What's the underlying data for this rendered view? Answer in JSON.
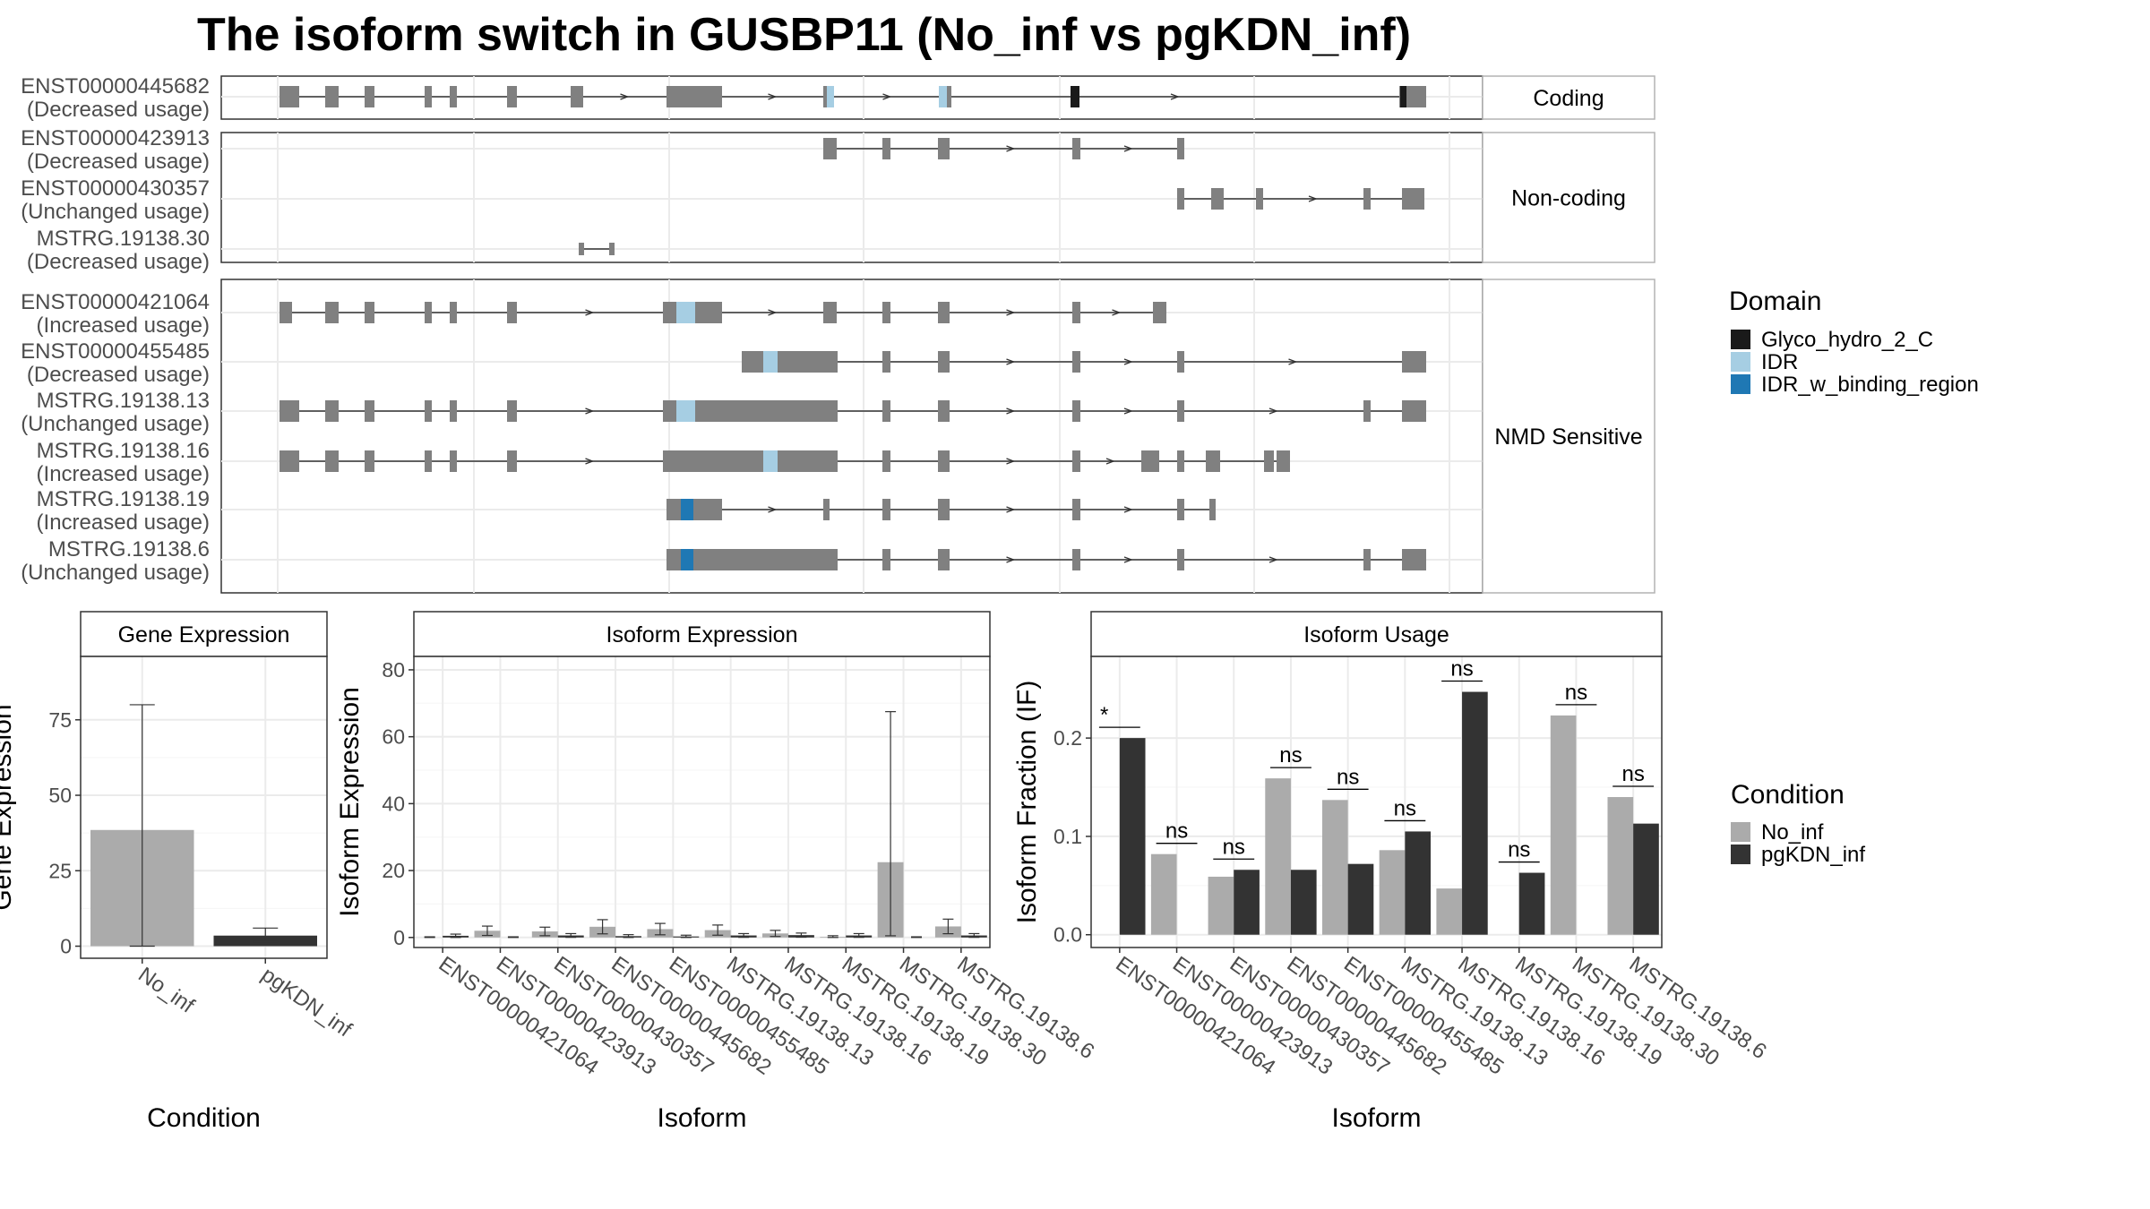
{
  "title": "The isoform switch in GUSBP11 (No_inf vs pgKDN_inf)",
  "colors": {
    "exon": "#808080",
    "No_inf": "#ababab",
    "pgKDN_inf": "#333333",
    "Glyco_hydro_2_C": "#1a1a1a",
    "IDR": "#a6cee3",
    "IDR_w_binding_region": "#1f78b4"
  },
  "structure": {
    "panels": [
      {
        "label": "Coding",
        "isoforms": [
          {
            "name": "ENST00000445682",
            "usage": "(Decreased usage)"
          }
        ]
      },
      {
        "label": "Non-coding",
        "isoforms": [
          {
            "name": "ENST00000423913",
            "usage": "(Decreased usage)"
          },
          {
            "name": "ENST00000430357",
            "usage": "(Unchanged usage)"
          },
          {
            "name": "MSTRG.19138.30",
            "usage": "(Decreased usage)"
          }
        ]
      },
      {
        "label": "NMD Sensitive",
        "isoforms": [
          {
            "name": "ENST00000421064",
            "usage": "(Increased usage)"
          },
          {
            "name": "ENST00000455485",
            "usage": "(Decreased usage)"
          },
          {
            "name": "MSTRG.19138.13",
            "usage": "(Unchanged usage)"
          },
          {
            "name": "MSTRG.19138.16",
            "usage": "(Increased usage)"
          },
          {
            "name": "MSTRG.19138.19",
            "usage": "(Increased usage)"
          },
          {
            "name": "MSTRG.19138.6",
            "usage": "(Unchanged usage)"
          }
        ]
      }
    ],
    "domain_legend": {
      "title": "Domain",
      "items": [
        "Glyco_hydro_2_C",
        "IDR",
        "IDR_w_binding_region"
      ]
    }
  },
  "chart_data": [
    {
      "type": "bar",
      "title": "Gene Expression",
      "xlabel": "Condition",
      "ylabel": "Gene Expression",
      "categories": [
        "No_inf",
        "pgKDN_inf"
      ],
      "values": [
        38.5,
        3.5
      ],
      "error": [
        [
          0,
          80
        ],
        [
          1.5,
          6
        ]
      ],
      "ylim": [
        -4,
        96
      ],
      "yticks": [
        0,
        25,
        50,
        75
      ]
    },
    {
      "type": "bar",
      "title": "Isoform Expression",
      "xlabel": "Isoform",
      "ylabel": "Isoform Expression",
      "categories": [
        "ENST00000421064",
        "ENST00000423913",
        "ENST00000430357",
        "ENST00000445682",
        "ENST00000455485",
        "MSTRG.19138.13",
        "MSTRG.19138.16",
        "MSTRG.19138.19",
        "MSTRG.19138.30",
        "MSTRG.19138.6"
      ],
      "series": [
        {
          "name": "No_inf",
          "values": [
            0.0,
            2.0,
            1.8,
            3.2,
            2.5,
            2.2,
            1.2,
            0.2,
            22.5,
            3.3
          ]
        },
        {
          "name": "pgKDN_inf",
          "values": [
            0.5,
            0.0,
            0.6,
            0.4,
            0.3,
            0.6,
            0.7,
            0.6,
            0.0,
            0.6
          ]
        }
      ],
      "ylim": [
        -3,
        84
      ],
      "yticks": [
        0,
        20,
        40,
        60,
        80
      ]
    },
    {
      "type": "bar",
      "title": "Isoform Usage",
      "xlabel": "Isoform",
      "ylabel": "Isoform Fraction (IF)",
      "categories": [
        "ENST00000421064",
        "ENST00000423913",
        "ENST00000430357",
        "ENST00000445682",
        "ENST00000455485",
        "MSTRG.19138.13",
        "MSTRG.19138.16",
        "MSTRG.19138.19",
        "MSTRG.19138.30",
        "MSTRG.19138.6"
      ],
      "series": [
        {
          "name": "No_inf",
          "values": [
            0.0,
            0.082,
            0.059,
            0.159,
            0.137,
            0.086,
            0.047,
            0.0,
            0.223,
            0.14
          ]
        },
        {
          "name": "pgKDN_inf",
          "values": [
            0.2,
            0.0,
            0.066,
            0.066,
            0.072,
            0.105,
            0.247,
            0.063,
            0.0,
            0.113
          ]
        }
      ],
      "significance": [
        "*",
        "ns",
        "ns",
        "ns",
        "ns",
        "ns",
        "ns",
        "ns",
        "ns",
        "ns"
      ],
      "ylim": [
        -0.013,
        0.283
      ],
      "yticks": [
        0.0,
        0.1,
        0.2
      ],
      "ytick_labels": [
        "0.0",
        "0.1",
        "0.2"
      ]
    }
  ],
  "condition_legend": {
    "title": "Condition",
    "items": [
      "No_inf",
      "pgKDN_inf"
    ]
  }
}
